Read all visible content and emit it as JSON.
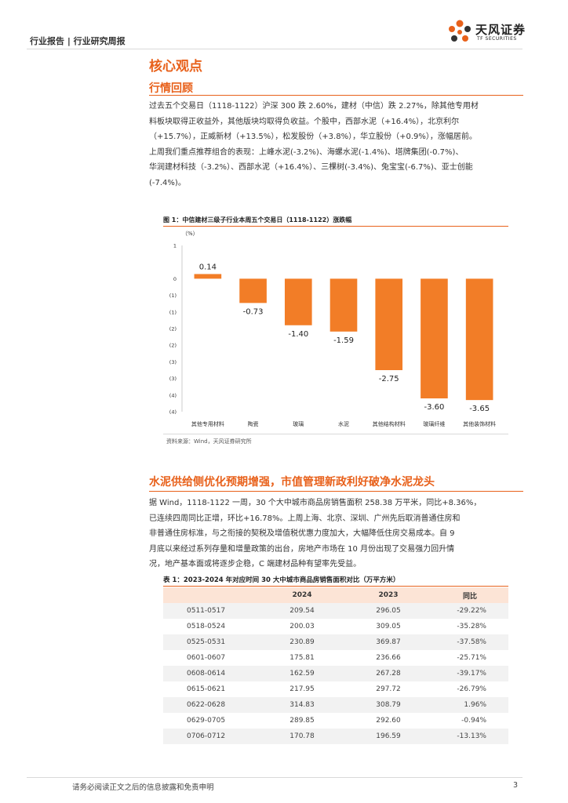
{
  "header": {
    "breadcrumb": "行业报告 | 行业研究周报",
    "logo_cn": "天风证券",
    "logo_en": "TF SECURITIES"
  },
  "section": {
    "title": "核心观点",
    "subtitle": "行情回顾"
  },
  "review": {
    "lines": [
      "过去五个交易日（1118-1122）沪深 300 跌 2.60%，建材（中信）跌 2.27%，除其他专用材",
      "料板块取得正收益外，其他版块均取得负收益。个股中，西部水泥（+16.4%），北京利尔",
      "（+15.7%），正威新材（+13.5%），松发股份（+3.8%），华立股份（+0.9%），涨幅居前。",
      "上周我们重点推荐组合的表现：上峰水泥(-3.2%)、海螺水泥(-1.4%)、塔牌集团(-0.7%)、",
      "华润建材科技（-3.2%）、西部水泥（+16.4%）、三棵树(-3.4%)、兔宝宝(-6.7%)、亚士创能",
      "(-7.4%)。"
    ]
  },
  "figure": {
    "title": "图 1：中信建材三级子行业本周五个交易日（1118-1122）涨跌幅",
    "source": "资料来源：Wind，天风证券研究所"
  },
  "chart_data": {
    "type": "bar",
    "title": "图 1：中信建材三级子行业本周五个交易日（1118-1122）涨跌幅",
    "ylabel": "（%）",
    "categories": [
      "其他专用材料",
      "陶瓷",
      "玻璃",
      "水泥",
      "其他结构材料",
      "玻璃纤维",
      "其他装饰材料"
    ],
    "values": [
      0.14,
      -0.73,
      -1.4,
      -1.59,
      -2.75,
      -3.6,
      -3.65
    ],
    "data_labels": [
      "0.14",
      "-0.73",
      "-1.40",
      "-1.59",
      "-2.75",
      "-3.60",
      "-3.65"
    ],
    "ylim": [
      -4,
      1
    ],
    "y_ticks": [
      {
        "value": 1,
        "label": "1"
      },
      {
        "value": 0,
        "label": "0"
      },
      {
        "value": -0.5,
        "label": "(1)"
      },
      {
        "value": -1,
        "label": "(1)"
      },
      {
        "value": -1.5,
        "label": "(2)"
      },
      {
        "value": -2,
        "label": "(2)"
      },
      {
        "value": -2.5,
        "label": "(3)"
      },
      {
        "value": -3,
        "label": "(3)"
      },
      {
        "value": -3.5,
        "label": "(4)"
      },
      {
        "value": -4,
        "label": "(4)"
      }
    ],
    "bar_color": "#f27d27",
    "grid": false,
    "legend": "none"
  },
  "section2": {
    "title": "水泥供给侧优化预期增强，市值管理新政利好破净水泥龙头",
    "lines": [
      "据 Wind，1118-1122 一周，30 个大中城市商品房销售面积 258.38 万平米，同比+8.36%，",
      "已连续四周同比正增，环比+16.78%。上周上海、北京、深圳、广州先后取消普通住房和",
      "非普通住房标准，与之衔接的契税及增值税优惠力度加大，大幅降低住房交易成本。自 9",
      "月底以来经过系列存量和增量政策的出台，房地产市场在 10 月份出现了交易强力回升情",
      "况，地产基本面或将逐步企稳，C 端建材品种有望率先受益。"
    ]
  },
  "table": {
    "title": "表 1：2023-2024 年对应时间 30 大中城市商品房销售面积对比（万平方米）",
    "headers": [
      "",
      "2024",
      "2023",
      "同比"
    ],
    "rows": [
      [
        "0511-0517",
        "209.54",
        "296.05",
        "-29.22%"
      ],
      [
        "0518-0524",
        "200.03",
        "309.05",
        "-35.28%"
      ],
      [
        "0525-0531",
        "230.89",
        "369.87",
        "-37.58%"
      ],
      [
        "0601-0607",
        "175.81",
        "236.66",
        "-25.71%"
      ],
      [
        "0608-0614",
        "162.59",
        "267.28",
        "-39.17%"
      ],
      [
        "0615-0621",
        "217.95",
        "297.72",
        "-26.79%"
      ],
      [
        "0622-0628",
        "314.83",
        "308.79",
        "1.96%"
      ],
      [
        "0629-0705",
        "289.85",
        "292.60",
        "-0.94%"
      ],
      [
        "0706-0712",
        "170.78",
        "196.59",
        "-13.13%"
      ]
    ]
  },
  "footer": {
    "disclaimer": "请务必阅读正文之后的信息披露和免责申明",
    "page": "3"
  },
  "colors": {
    "accent": "#e8611b",
    "bar": "#f27d27",
    "table_header": "#fce4d6",
    "table_stripe": "#f2f2f2"
  }
}
